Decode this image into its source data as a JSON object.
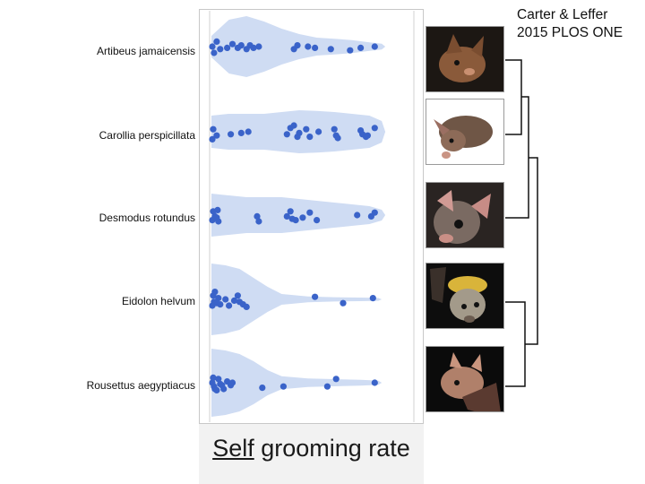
{
  "citation": {
    "line1": "Carter & Leffer",
    "line2": "2015 PLOS ONE"
  },
  "photos": [
    {
      "icon": "bat-photo-icon",
      "species": "Artibeus jamaicensis"
    },
    {
      "icon": "bat-photo-icon",
      "species": "Carollia perspicillata"
    },
    {
      "icon": "bat-photo-icon",
      "species": "Desmodus rotundus"
    },
    {
      "icon": "bat-photo-icon",
      "species": "Eidolon helvum"
    },
    {
      "icon": "bat-photo-icon",
      "species": "Rousettus aegyptiacus"
    }
  ],
  "colors": {
    "violin": "#cfdcf3",
    "dot": "#3a63c9",
    "panel": "#f2f2f2"
  },
  "chart_data": {
    "type": "scatter",
    "subtype": "violin-strip",
    "title": "",
    "xlabel_underlined": "Self",
    "xlabel_rest": " grooming rate",
    "ylabel": "",
    "xlim": [
      0,
      100
    ],
    "grid": false,
    "categories": [
      "Artibeus jamaicensis",
      "Carollia perspicillata",
      "Desmodus rotundus",
      "Eidolon helvum",
      "Rousettus aegyptiacus"
    ],
    "series": [
      {
        "name": "Artibeus jamaicensis",
        "values": [
          0.5,
          1.5,
          3,
          5,
          9,
          12,
          15,
          17,
          20,
          22,
          24,
          27,
          47,
          49,
          55,
          59,
          68,
          79,
          85,
          93
        ],
        "jitter": [
          0,
          0.5,
          -0.4,
          0.2,
          0.1,
          -0.2,
          0.1,
          -0.1,
          0.2,
          -0.1,
          0.1,
          0,
          0.2,
          -0.1,
          0,
          0.1,
          0.2,
          0.3,
          0.1,
          0
        ]
      },
      {
        "name": "Carollia perspicillata",
        "values": [
          0.5,
          1,
          3,
          11,
          17,
          21,
          43,
          45,
          47,
          49,
          50,
          54,
          56,
          61,
          70,
          71,
          72,
          85,
          86,
          88,
          89,
          93
        ],
        "jitter": [
          0.6,
          -0.2,
          0.3,
          0.2,
          0.1,
          0,
          0.2,
          -0.3,
          -0.5,
          0.4,
          0.1,
          -0.2,
          0.4,
          0,
          -0.2,
          0.3,
          0.5,
          -0.1,
          0.2,
          0.4,
          0.3,
          -0.3
        ]
      },
      {
        "name": "Desmodus rotundus",
        "values": [
          0.5,
          1,
          2,
          3,
          3.5,
          4,
          26,
          27,
          43,
          45,
          46,
          48,
          52,
          56,
          60,
          83,
          91,
          93
        ],
        "jitter": [
          0.4,
          -0.3,
          0.1,
          0.2,
          -0.4,
          0.5,
          0.1,
          0.5,
          0.1,
          -0.3,
          0.3,
          0.4,
          0.2,
          -0.2,
          0.4,
          0,
          0.1,
          -0.2
        ]
      },
      {
        "name": "Eidolon helvum",
        "values": [
          0.5,
          1,
          1.5,
          2,
          3,
          4,
          5,
          8,
          10,
          13,
          15,
          16,
          18,
          20,
          59,
          75,
          92
        ],
        "jitter": [
          0.5,
          -0.3,
          0.2,
          -0.6,
          0.3,
          -0.1,
          0.4,
          0,
          0.5,
          0.1,
          -0.3,
          0.2,
          0.4,
          0.6,
          -0.2,
          0.3,
          -0.1
        ]
      },
      {
        "name": "Rousettus aegyptiacus",
        "values": [
          0.5,
          1,
          1.5,
          2,
          3,
          4,
          5,
          6,
          7,
          9,
          11,
          12,
          29,
          41,
          66,
          71,
          93
        ],
        "jitter": [
          0,
          -0.4,
          0.3,
          0.5,
          0.6,
          -0.3,
          0.1,
          0.2,
          0.5,
          -0.1,
          0.2,
          0,
          0.4,
          0.3,
          0.3,
          -0.3,
          0
        ]
      }
    ],
    "violins": [
      {
        "x": [
          0,
          10,
          20,
          30,
          40,
          50,
          60,
          70,
          80,
          90,
          97
        ],
        "width": [
          0.3,
          0.75,
          0.85,
          0.7,
          0.5,
          0.35,
          0.25,
          0.22,
          0.18,
          0.12,
          0.08
        ]
      },
      {
        "x": [
          0,
          10,
          20,
          30,
          40,
          50,
          60,
          70,
          80,
          90,
          97
        ],
        "width": [
          0.45,
          0.5,
          0.5,
          0.5,
          0.55,
          0.6,
          0.58,
          0.55,
          0.5,
          0.45,
          0.3
        ]
      },
      {
        "x": [
          0,
          10,
          20,
          30,
          40,
          50,
          60,
          70,
          80,
          90,
          97
        ],
        "width": [
          0.6,
          0.55,
          0.5,
          0.5,
          0.5,
          0.45,
          0.4,
          0.35,
          0.3,
          0.25,
          0.15
        ]
      },
      {
        "x": [
          0,
          8,
          16,
          24,
          32,
          40,
          55,
          70,
          85,
          95
        ],
        "width": [
          1.0,
          0.95,
          0.85,
          0.6,
          0.35,
          0.15,
          0.08,
          0.06,
          0.05,
          0.04
        ]
      },
      {
        "x": [
          0,
          8,
          16,
          24,
          32,
          40,
          55,
          70,
          85,
          95
        ],
        "width": [
          0.95,
          0.9,
          0.8,
          0.6,
          0.35,
          0.18,
          0.12,
          0.1,
          0.08,
          0.06
        ]
      }
    ],
    "dendrogram": "((Artibeus jamaicensis, Carollia perspicillata), Desmodus rotundus), (Eidolon helvum, Rousettus aegyptiacus)"
  }
}
